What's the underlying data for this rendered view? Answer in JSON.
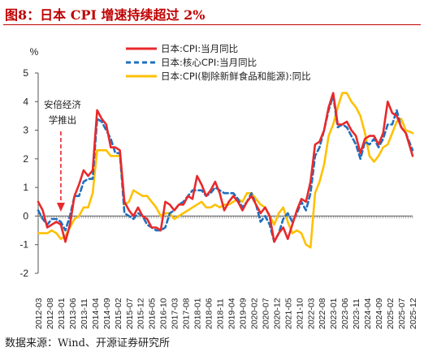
{
  "figure": {
    "title": "图8：日本 CPI 增速持续超过 2%",
    "source": "数据来源：Wind、开源证券研究所"
  },
  "chart_data": {
    "type": "line",
    "ylabel": "%",
    "ylim": [
      -2,
      5
    ],
    "yticks": [
      "5",
      "4",
      "3",
      "2",
      "1",
      "0",
      "-1",
      "-2"
    ],
    "x_tick_labels": [
      "2012-03",
      "2012-08",
      "2013-01",
      "2013-06",
      "2013-11",
      "2014-04",
      "2014-09",
      "2015-02",
      "2015-07",
      "2015-12",
      "2016-05",
      "2016-10",
      "2017-03",
      "2017-08",
      "2018-01",
      "2018-06",
      "2018-11",
      "2019-04",
      "2019-09",
      "2020-02",
      "2020-07",
      "2020-12",
      "2021-05",
      "2021-10",
      "2022-03",
      "2022-08",
      "2023-01",
      "2023-06",
      "2023-11",
      "2024-04",
      "2024-09",
      "2025-02",
      "2025-07",
      "2025-12"
    ],
    "x_range": [
      "2012-03",
      "2025-12"
    ],
    "legend_position": "top-center",
    "annotation": {
      "text_line1": "安倍经济",
      "text_line2": "学推出",
      "x": "2013-01",
      "arrow_color": "#e8292b"
    },
    "series": [
      {
        "name": "日本:CPI:当月同比",
        "color": "#e8292b",
        "style": "solid",
        "points": [
          [
            "2012-03",
            0.5
          ],
          [
            "2012-05",
            0.2
          ],
          [
            "2012-07",
            -0.4
          ],
          [
            "2012-09",
            -0.3
          ],
          [
            "2012-11",
            -0.2
          ],
          [
            "2013-01",
            -0.3
          ],
          [
            "2013-03",
            -0.9
          ],
          [
            "2013-05",
            -0.3
          ],
          [
            "2013-07",
            0.7
          ],
          [
            "2013-09",
            1.1
          ],
          [
            "2013-11",
            1.6
          ],
          [
            "2014-01",
            1.4
          ],
          [
            "2014-03",
            1.6
          ],
          [
            "2014-05",
            3.7
          ],
          [
            "2014-07",
            3.4
          ],
          [
            "2014-09",
            3.2
          ],
          [
            "2014-11",
            2.4
          ],
          [
            "2015-01",
            2.4
          ],
          [
            "2015-03",
            2.3
          ],
          [
            "2015-05",
            0.5
          ],
          [
            "2015-07",
            0.2
          ],
          [
            "2015-09",
            0.0
          ],
          [
            "2015-11",
            0.3
          ],
          [
            "2016-01",
            0.0
          ],
          [
            "2016-03",
            -0.1
          ],
          [
            "2016-05",
            -0.4
          ],
          [
            "2016-07",
            -0.4
          ],
          [
            "2016-09",
            -0.5
          ],
          [
            "2016-11",
            0.5
          ],
          [
            "2017-01",
            0.4
          ],
          [
            "2017-03",
            0.2
          ],
          [
            "2017-05",
            0.4
          ],
          [
            "2017-07",
            0.4
          ],
          [
            "2017-09",
            0.7
          ],
          [
            "2017-11",
            0.6
          ],
          [
            "2018-01",
            1.4
          ],
          [
            "2018-03",
            1.1
          ],
          [
            "2018-05",
            0.7
          ],
          [
            "2018-07",
            0.9
          ],
          [
            "2018-09",
            1.2
          ],
          [
            "2018-11",
            0.8
          ],
          [
            "2019-01",
            0.2
          ],
          [
            "2019-03",
            0.5
          ],
          [
            "2019-05",
            0.7
          ],
          [
            "2019-07",
            0.5
          ],
          [
            "2019-09",
            0.2
          ],
          [
            "2019-11",
            0.5
          ],
          [
            "2020-01",
            0.7
          ],
          [
            "2020-03",
            0.4
          ],
          [
            "2020-05",
            0.1
          ],
          [
            "2020-07",
            0.3
          ],
          [
            "2020-09",
            0.0
          ],
          [
            "2020-11",
            -0.9
          ],
          [
            "2021-01",
            -0.6
          ],
          [
            "2021-03",
            -0.4
          ],
          [
            "2021-05",
            -0.8
          ],
          [
            "2021-07",
            -0.3
          ],
          [
            "2021-09",
            0.2
          ],
          [
            "2021-11",
            0.6
          ],
          [
            "2022-01",
            0.5
          ],
          [
            "2022-03",
            1.2
          ],
          [
            "2022-05",
            2.5
          ],
          [
            "2022-07",
            2.6
          ],
          [
            "2022-09",
            3.0
          ],
          [
            "2022-11",
            3.8
          ],
          [
            "2023-01",
            4.3
          ],
          [
            "2023-03",
            3.2
          ],
          [
            "2023-05",
            3.2
          ],
          [
            "2023-07",
            3.3
          ],
          [
            "2023-09",
            3.0
          ],
          [
            "2023-11",
            2.8
          ],
          [
            "2024-01",
            2.2
          ],
          [
            "2024-03",
            2.7
          ],
          [
            "2024-05",
            2.8
          ],
          [
            "2024-07",
            2.8
          ],
          [
            "2024-09",
            2.5
          ],
          [
            "2024-11",
            2.9
          ],
          [
            "2025-01",
            4.0
          ],
          [
            "2025-03",
            3.6
          ],
          [
            "2025-05",
            3.5
          ],
          [
            "2025-07",
            3.1
          ],
          [
            "2025-09",
            2.9
          ],
          [
            "2025-12",
            2.1
          ]
        ]
      },
      {
        "name": "日本:核心CPI:当月同比",
        "color": "#1f6fbf",
        "style": "dashed",
        "points": [
          [
            "2012-03",
            0.2
          ],
          [
            "2012-05",
            -0.1
          ],
          [
            "2012-07",
            -0.3
          ],
          [
            "2012-09",
            -0.1
          ],
          [
            "2012-11",
            -0.1
          ],
          [
            "2013-01",
            -0.2
          ],
          [
            "2013-03",
            -0.5
          ],
          [
            "2013-05",
            0.0
          ],
          [
            "2013-07",
            0.7
          ],
          [
            "2013-09",
            0.7
          ],
          [
            "2013-11",
            1.2
          ],
          [
            "2014-01",
            1.3
          ],
          [
            "2014-03",
            1.3
          ],
          [
            "2014-05",
            3.4
          ],
          [
            "2014-07",
            3.3
          ],
          [
            "2014-09",
            3.0
          ],
          [
            "2014-11",
            2.7
          ],
          [
            "2015-01",
            2.2
          ],
          [
            "2015-03",
            2.2
          ],
          [
            "2015-05",
            0.1
          ],
          [
            "2015-07",
            0.0
          ],
          [
            "2015-09",
            -0.1
          ],
          [
            "2015-11",
            0.1
          ],
          [
            "2016-01",
            0.0
          ],
          [
            "2016-03",
            -0.3
          ],
          [
            "2016-05",
            -0.4
          ],
          [
            "2016-07",
            -0.5
          ],
          [
            "2016-09",
            -0.5
          ],
          [
            "2016-11",
            -0.4
          ],
          [
            "2017-01",
            0.1
          ],
          [
            "2017-03",
            0.2
          ],
          [
            "2017-05",
            0.4
          ],
          [
            "2017-07",
            0.5
          ],
          [
            "2017-09",
            0.7
          ],
          [
            "2017-11",
            0.9
          ],
          [
            "2018-01",
            0.9
          ],
          [
            "2018-03",
            0.9
          ],
          [
            "2018-05",
            0.7
          ],
          [
            "2018-07",
            0.8
          ],
          [
            "2018-09",
            1.0
          ],
          [
            "2018-11",
            0.9
          ],
          [
            "2019-01",
            0.8
          ],
          [
            "2019-03",
            0.8
          ],
          [
            "2019-05",
            0.8
          ],
          [
            "2019-07",
            0.6
          ],
          [
            "2019-09",
            0.3
          ],
          [
            "2019-11",
            0.5
          ],
          [
            "2020-01",
            0.8
          ],
          [
            "2020-03",
            0.4
          ],
          [
            "2020-05",
            -0.2
          ],
          [
            "2020-07",
            0.0
          ],
          [
            "2020-09",
            -0.3
          ],
          [
            "2020-11",
            -0.9
          ],
          [
            "2021-01",
            -0.6
          ],
          [
            "2021-03",
            -0.1
          ],
          [
            "2021-05",
            0.1
          ],
          [
            "2021-07",
            -0.2
          ],
          [
            "2021-09",
            0.1
          ],
          [
            "2021-11",
            0.5
          ],
          [
            "2022-01",
            0.2
          ],
          [
            "2022-03",
            0.8
          ],
          [
            "2022-05",
            2.1
          ],
          [
            "2022-07",
            2.4
          ],
          [
            "2022-09",
            3.0
          ],
          [
            "2022-11",
            3.7
          ],
          [
            "2023-01",
            4.2
          ],
          [
            "2023-03",
            3.1
          ],
          [
            "2023-05",
            3.2
          ],
          [
            "2023-07",
            3.1
          ],
          [
            "2023-09",
            2.8
          ],
          [
            "2023-11",
            2.5
          ],
          [
            "2024-01",
            2.0
          ],
          [
            "2024-03",
            2.6
          ],
          [
            "2024-05",
            2.5
          ],
          [
            "2024-07",
            2.7
          ],
          [
            "2024-09",
            2.4
          ],
          [
            "2024-11",
            2.7
          ],
          [
            "2025-01",
            3.2
          ],
          [
            "2025-03",
            3.2
          ],
          [
            "2025-05",
            3.7
          ],
          [
            "2025-07",
            3.1
          ],
          [
            "2025-09",
            2.9
          ],
          [
            "2025-12",
            2.3
          ]
        ]
      },
      {
        "name": "日本:CPI(剔除新鲜食品和能源):同比",
        "color": "#ffc000",
        "style": "solid",
        "points": [
          [
            "2012-03",
            -0.6
          ],
          [
            "2012-05",
            -0.6
          ],
          [
            "2012-07",
            -0.6
          ],
          [
            "2012-09",
            -0.5
          ],
          [
            "2012-11",
            -0.6
          ],
          [
            "2013-01",
            -0.8
          ],
          [
            "2013-03",
            -0.7
          ],
          [
            "2013-05",
            -0.4
          ],
          [
            "2013-07",
            -0.1
          ],
          [
            "2013-09",
            0.0
          ],
          [
            "2013-11",
            0.3
          ],
          [
            "2014-01",
            0.3
          ],
          [
            "2014-03",
            0.8
          ],
          [
            "2014-05",
            2.3
          ],
          [
            "2014-07",
            2.3
          ],
          [
            "2014-09",
            2.3
          ],
          [
            "2014-11",
            2.1
          ],
          [
            "2015-01",
            2.1
          ],
          [
            "2015-03",
            2.1
          ],
          [
            "2015-05",
            0.4
          ],
          [
            "2015-07",
            0.5
          ],
          [
            "2015-09",
            0.9
          ],
          [
            "2015-11",
            0.8
          ],
          [
            "2016-01",
            0.7
          ],
          [
            "2016-03",
            0.7
          ],
          [
            "2016-05",
            0.5
          ],
          [
            "2016-07",
            0.3
          ],
          [
            "2016-09",
            0.0
          ],
          [
            "2016-11",
            0.1
          ],
          [
            "2017-01",
            0.1
          ],
          [
            "2017-03",
            -0.1
          ],
          [
            "2017-05",
            0.0
          ],
          [
            "2017-07",
            0.1
          ],
          [
            "2017-09",
            0.2
          ],
          [
            "2017-11",
            0.3
          ],
          [
            "2018-01",
            0.4
          ],
          [
            "2018-03",
            0.5
          ],
          [
            "2018-05",
            0.3
          ],
          [
            "2018-07",
            0.3
          ],
          [
            "2018-09",
            0.4
          ],
          [
            "2018-11",
            0.3
          ],
          [
            "2019-01",
            0.4
          ],
          [
            "2019-03",
            0.4
          ],
          [
            "2019-05",
            0.5
          ],
          [
            "2019-07",
            0.6
          ],
          [
            "2019-09",
            0.5
          ],
          [
            "2019-11",
            0.8
          ],
          [
            "2020-01",
            0.8
          ],
          [
            "2020-03",
            0.6
          ],
          [
            "2020-05",
            0.4
          ],
          [
            "2020-07",
            0.3
          ],
          [
            "2020-09",
            0.0
          ],
          [
            "2020-11",
            -0.3
          ],
          [
            "2021-01",
            0.1
          ],
          [
            "2021-03",
            0.3
          ],
          [
            "2021-05",
            -0.2
          ],
          [
            "2021-07",
            -0.6
          ],
          [
            "2021-09",
            -0.5
          ],
          [
            "2021-11",
            -0.6
          ],
          [
            "2022-01",
            -1.0
          ],
          [
            "2022-03",
            -1.1
          ],
          [
            "2022-05",
            0.8
          ],
          [
            "2022-07",
            1.2
          ],
          [
            "2022-09",
            1.8
          ],
          [
            "2022-11",
            2.8
          ],
          [
            "2023-01",
            3.2
          ],
          [
            "2023-03",
            3.8
          ],
          [
            "2023-05",
            4.3
          ],
          [
            "2023-07",
            4.3
          ],
          [
            "2023-09",
            4.0
          ],
          [
            "2023-11",
            3.8
          ],
          [
            "2024-01",
            3.5
          ],
          [
            "2024-03",
            2.9
          ],
          [
            "2024-05",
            2.1
          ],
          [
            "2024-07",
            1.9
          ],
          [
            "2024-09",
            2.1
          ],
          [
            "2024-11",
            2.4
          ],
          [
            "2025-01",
            2.5
          ],
          [
            "2025-03",
            2.9
          ],
          [
            "2025-05",
            3.3
          ],
          [
            "2025-07",
            3.4
          ],
          [
            "2025-09",
            3.0
          ],
          [
            "2025-12",
            2.9
          ]
        ]
      }
    ]
  }
}
